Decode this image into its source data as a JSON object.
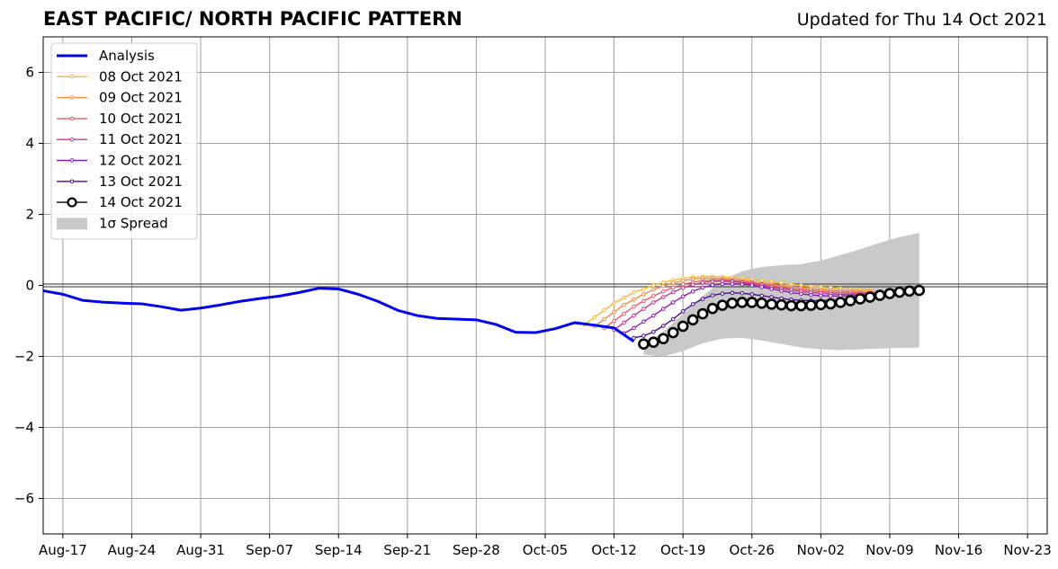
{
  "header": {
    "title": "EAST PACIFIC/ NORTH PACIFIC PATTERN",
    "updated": "Updated for Thu 14 Oct 2021"
  },
  "chart_data": {
    "type": "line",
    "title": "EAST PACIFIC/ NORTH PACIFIC PATTERN",
    "xlabel": "",
    "ylabel": "",
    "x_axis": "date",
    "xlim": [
      "2021-08-15",
      "2021-11-25"
    ],
    "ylim": [
      -7,
      7
    ],
    "x_ticks": [
      "2021-08-17",
      "2021-08-24",
      "2021-08-31",
      "2021-09-07",
      "2021-09-14",
      "2021-09-21",
      "2021-09-28",
      "2021-10-05",
      "2021-10-12",
      "2021-10-19",
      "2021-10-26",
      "2021-11-02",
      "2021-11-09",
      "2021-11-16",
      "2021-11-23"
    ],
    "x_tick_labels": [
      "Aug-17",
      "Aug-24",
      "Aug-31",
      "Sep-07",
      "Sep-14",
      "Sep-21",
      "Sep-28",
      "Oct-05",
      "Oct-12",
      "Oct-19",
      "Oct-26",
      "Nov-02",
      "Nov-09",
      "Nov-16",
      "Nov-23"
    ],
    "y_ticks": [
      6,
      4,
      2,
      0,
      -2,
      -4,
      -6
    ],
    "y_tick_labels": [
      "6",
      "4",
      "2",
      "0",
      "−2",
      "−4",
      "−6"
    ],
    "grid": true,
    "zero_line": true,
    "legend": "upper-left",
    "analysis": {
      "name": "Analysis",
      "color": "#0000ee",
      "points": [
        [
          "2021-08-15",
          -0.15
        ],
        [
          "2021-08-17",
          -0.25
        ],
        [
          "2021-08-19",
          -0.42
        ],
        [
          "2021-08-21",
          -0.47
        ],
        [
          "2021-08-23",
          -0.5
        ],
        [
          "2021-08-25",
          -0.52
        ],
        [
          "2021-08-27",
          -0.6
        ],
        [
          "2021-08-29",
          -0.7
        ],
        [
          "2021-08-31",
          -0.64
        ],
        [
          "2021-09-02",
          -0.55
        ],
        [
          "2021-09-04",
          -0.45
        ],
        [
          "2021-09-06",
          -0.37
        ],
        [
          "2021-09-08",
          -0.3
        ],
        [
          "2021-09-10",
          -0.2
        ],
        [
          "2021-09-12",
          -0.08
        ],
        [
          "2021-09-14",
          -0.1
        ],
        [
          "2021-09-16",
          -0.25
        ],
        [
          "2021-09-18",
          -0.45
        ],
        [
          "2021-09-20",
          -0.7
        ],
        [
          "2021-09-22",
          -0.85
        ],
        [
          "2021-09-24",
          -0.93
        ],
        [
          "2021-09-26",
          -0.95
        ],
        [
          "2021-09-28",
          -0.97
        ],
        [
          "2021-09-30",
          -1.1
        ],
        [
          "2021-10-02",
          -1.32
        ],
        [
          "2021-10-04",
          -1.33
        ],
        [
          "2021-10-06",
          -1.22
        ],
        [
          "2021-10-08",
          -1.05
        ],
        [
          "2021-10-10",
          -1.12
        ],
        [
          "2021-10-12",
          -1.2
        ],
        [
          "2021-10-14",
          -1.58
        ]
      ]
    },
    "forecasts": [
      {
        "name": "08 Oct 2021",
        "color": "#f6b932",
        "points": [
          [
            "2021-10-09",
            -1.1
          ],
          [
            "2021-10-10",
            -0.9
          ],
          [
            "2021-10-11",
            -0.7
          ],
          [
            "2021-10-12",
            -0.5
          ],
          [
            "2021-10-13",
            -0.35
          ],
          [
            "2021-10-14",
            -0.2
          ],
          [
            "2021-10-15",
            -0.1
          ],
          [
            "2021-10-16",
            0.0
          ],
          [
            "2021-10-17",
            0.08
          ],
          [
            "2021-10-18",
            0.15
          ],
          [
            "2021-10-19",
            0.2
          ],
          [
            "2021-10-20",
            0.23
          ],
          [
            "2021-10-21",
            0.25
          ],
          [
            "2021-10-22",
            0.25
          ],
          [
            "2021-10-23",
            0.24
          ],
          [
            "2021-10-24",
            0.22
          ],
          [
            "2021-10-25",
            0.2
          ],
          [
            "2021-10-26",
            0.17
          ],
          [
            "2021-10-27",
            0.13
          ],
          [
            "2021-10-28",
            0.1
          ],
          [
            "2021-10-29",
            0.07
          ],
          [
            "2021-10-30",
            0.03
          ],
          [
            "2021-10-31",
            0.0
          ],
          [
            "2021-11-01",
            -0.03
          ],
          [
            "2021-11-02",
            -0.05
          ],
          [
            "2021-11-03",
            -0.07
          ],
          [
            "2021-11-04",
            -0.09
          ],
          [
            "2021-11-05",
            -0.11
          ],
          [
            "2021-11-06",
            -0.12
          ],
          [
            "2021-11-07",
            -0.13
          ]
        ]
      },
      {
        "name": "09 Oct 2021",
        "color": "#f48a47",
        "points": [
          [
            "2021-10-10",
            -1.15
          ],
          [
            "2021-10-11",
            -0.95
          ],
          [
            "2021-10-12",
            -0.75
          ],
          [
            "2021-10-13",
            -0.55
          ],
          [
            "2021-10-14",
            -0.4
          ],
          [
            "2021-10-15",
            -0.25
          ],
          [
            "2021-10-16",
            -0.12
          ],
          [
            "2021-10-17",
            -0.02
          ],
          [
            "2021-10-18",
            0.07
          ],
          [
            "2021-10-19",
            0.13
          ],
          [
            "2021-10-20",
            0.18
          ],
          [
            "2021-10-21",
            0.2
          ],
          [
            "2021-10-22",
            0.2
          ],
          [
            "2021-10-23",
            0.19
          ],
          [
            "2021-10-24",
            0.17
          ],
          [
            "2021-10-25",
            0.14
          ],
          [
            "2021-10-26",
            0.1
          ],
          [
            "2021-10-27",
            0.06
          ],
          [
            "2021-10-28",
            0.03
          ],
          [
            "2021-10-29",
            -0.01
          ],
          [
            "2021-10-30",
            -0.04
          ],
          [
            "2021-10-31",
            -0.07
          ],
          [
            "2021-11-01",
            -0.1
          ],
          [
            "2021-11-02",
            -0.12
          ],
          [
            "2021-11-03",
            -0.14
          ],
          [
            "2021-11-04",
            -0.15
          ],
          [
            "2021-11-05",
            -0.16
          ],
          [
            "2021-11-06",
            -0.17
          ],
          [
            "2021-11-07",
            -0.17
          ],
          [
            "2021-11-08",
            -0.17
          ]
        ]
      },
      {
        "name": "10 Oct 2021",
        "color": "#e05c6b",
        "points": [
          [
            "2021-10-11",
            -1.2
          ],
          [
            "2021-10-12",
            -1.0
          ],
          [
            "2021-10-13",
            -0.8
          ],
          [
            "2021-10-14",
            -0.6
          ],
          [
            "2021-10-15",
            -0.44
          ],
          [
            "2021-10-16",
            -0.3
          ],
          [
            "2021-10-17",
            -0.17
          ],
          [
            "2021-10-18",
            -0.06
          ],
          [
            "2021-10-19",
            0.03
          ],
          [
            "2021-10-20",
            0.09
          ],
          [
            "2021-10-21",
            0.13
          ],
          [
            "2021-10-22",
            0.15
          ],
          [
            "2021-10-23",
            0.15
          ],
          [
            "2021-10-24",
            0.13
          ],
          [
            "2021-10-25",
            0.1
          ],
          [
            "2021-10-26",
            0.07
          ],
          [
            "2021-10-27",
            0.03
          ],
          [
            "2021-10-28",
            -0.01
          ],
          [
            "2021-10-29",
            -0.05
          ],
          [
            "2021-10-30",
            -0.09
          ],
          [
            "2021-10-31",
            -0.12
          ],
          [
            "2021-11-01",
            -0.15
          ],
          [
            "2021-11-02",
            -0.17
          ],
          [
            "2021-11-03",
            -0.19
          ],
          [
            "2021-11-04",
            -0.2
          ],
          [
            "2021-11-05",
            -0.2
          ],
          [
            "2021-11-06",
            -0.21
          ],
          [
            "2021-11-07",
            -0.21
          ],
          [
            "2021-11-08",
            -0.2
          ]
        ]
      },
      {
        "name": "11 Oct 2021",
        "color": "#c0388c",
        "points": [
          [
            "2021-10-12",
            -1.25
          ],
          [
            "2021-10-13",
            -1.05
          ],
          [
            "2021-10-14",
            -0.85
          ],
          [
            "2021-10-15",
            -0.66
          ],
          [
            "2021-10-16",
            -0.48
          ],
          [
            "2021-10-17",
            -0.33
          ],
          [
            "2021-10-18",
            -0.19
          ],
          [
            "2021-10-19",
            -0.07
          ],
          [
            "2021-10-20",
            0.02
          ],
          [
            "2021-10-21",
            0.08
          ],
          [
            "2021-10-22",
            0.11
          ],
          [
            "2021-10-23",
            0.12
          ],
          [
            "2021-10-24",
            0.11
          ],
          [
            "2021-10-25",
            0.08
          ],
          [
            "2021-10-26",
            0.04
          ],
          [
            "2021-10-27",
            0.0
          ],
          [
            "2021-10-28",
            -0.05
          ],
          [
            "2021-10-29",
            -0.09
          ],
          [
            "2021-10-30",
            -0.13
          ],
          [
            "2021-10-31",
            -0.17
          ],
          [
            "2021-11-01",
            -0.2
          ],
          [
            "2021-11-02",
            -0.22
          ],
          [
            "2021-11-03",
            -0.24
          ],
          [
            "2021-11-04",
            -0.25
          ],
          [
            "2021-11-05",
            -0.25
          ],
          [
            "2021-11-06",
            -0.24
          ],
          [
            "2021-11-07",
            -0.23
          ],
          [
            "2021-11-08",
            -0.22
          ]
        ]
      },
      {
        "name": "12 Oct 2021",
        "color": "#8a1aad",
        "points": [
          [
            "2021-10-13",
            -1.35
          ],
          [
            "2021-10-14",
            -1.2
          ],
          [
            "2021-10-15",
            -1.02
          ],
          [
            "2021-10-16",
            -0.85
          ],
          [
            "2021-10-17",
            -0.66
          ],
          [
            "2021-10-18",
            -0.48
          ],
          [
            "2021-10-19",
            -0.31
          ],
          [
            "2021-10-20",
            -0.17
          ],
          [
            "2021-10-21",
            -0.06
          ],
          [
            "2021-10-22",
            0.01
          ],
          [
            "2021-10-23",
            0.04
          ],
          [
            "2021-10-24",
            0.05
          ],
          [
            "2021-10-25",
            0.03
          ],
          [
            "2021-10-26",
            0.0
          ],
          [
            "2021-10-27",
            -0.05
          ],
          [
            "2021-10-28",
            -0.1
          ],
          [
            "2021-10-29",
            -0.15
          ],
          [
            "2021-10-30",
            -0.2
          ],
          [
            "2021-10-31",
            -0.24
          ],
          [
            "2021-11-01",
            -0.27
          ],
          [
            "2021-11-02",
            -0.29
          ],
          [
            "2021-11-03",
            -0.3
          ],
          [
            "2021-11-04",
            -0.3
          ],
          [
            "2021-11-05",
            -0.29
          ],
          [
            "2021-11-06",
            -0.28
          ],
          [
            "2021-11-07",
            -0.26
          ],
          [
            "2021-11-08",
            -0.24
          ]
        ]
      },
      {
        "name": "13 Oct 2021",
        "color": "#4a0c8f",
        "points": [
          [
            "2021-10-14",
            -1.48
          ],
          [
            "2021-10-15",
            -1.42
          ],
          [
            "2021-10-16",
            -1.31
          ],
          [
            "2021-10-17",
            -1.14
          ],
          [
            "2021-10-18",
            -0.95
          ],
          [
            "2021-10-19",
            -0.73
          ],
          [
            "2021-10-20",
            -0.53
          ],
          [
            "2021-10-21",
            -0.38
          ],
          [
            "2021-10-22",
            -0.28
          ],
          [
            "2021-10-23",
            -0.23
          ],
          [
            "2021-10-24",
            -0.21
          ],
          [
            "2021-10-25",
            -0.22
          ],
          [
            "2021-10-26",
            -0.25
          ],
          [
            "2021-10-27",
            -0.29
          ],
          [
            "2021-10-28",
            -0.33
          ],
          [
            "2021-10-29",
            -0.37
          ],
          [
            "2021-10-30",
            -0.4
          ],
          [
            "2021-10-31",
            -0.42
          ],
          [
            "2021-11-01",
            -0.43
          ],
          [
            "2021-11-02",
            -0.43
          ],
          [
            "2021-11-03",
            -0.42
          ],
          [
            "2021-11-04",
            -0.41
          ],
          [
            "2021-11-05",
            -0.39
          ],
          [
            "2021-11-06",
            -0.37
          ],
          [
            "2021-11-07",
            -0.35
          ],
          [
            "2021-11-08",
            -0.32
          ]
        ]
      },
      {
        "name": "14 Oct 2021",
        "color": "#000000",
        "points": [
          [
            "2021-10-15",
            -1.65
          ],
          [
            "2021-10-16",
            -1.6
          ],
          [
            "2021-10-17",
            -1.5
          ],
          [
            "2021-10-18",
            -1.33
          ],
          [
            "2021-10-19",
            -1.15
          ],
          [
            "2021-10-20",
            -0.97
          ],
          [
            "2021-10-21",
            -0.8
          ],
          [
            "2021-10-22",
            -0.65
          ],
          [
            "2021-10-23",
            -0.56
          ],
          [
            "2021-10-24",
            -0.5
          ],
          [
            "2021-10-25",
            -0.48
          ],
          [
            "2021-10-26",
            -0.48
          ],
          [
            "2021-10-27",
            -0.5
          ],
          [
            "2021-10-28",
            -0.53
          ],
          [
            "2021-10-29",
            -0.55
          ],
          [
            "2021-10-30",
            -0.57
          ],
          [
            "2021-10-31",
            -0.57
          ],
          [
            "2021-11-01",
            -0.56
          ],
          [
            "2021-11-02",
            -0.54
          ],
          [
            "2021-11-03",
            -0.52
          ],
          [
            "2021-11-04",
            -0.48
          ],
          [
            "2021-11-05",
            -0.43
          ],
          [
            "2021-11-06",
            -0.38
          ],
          [
            "2021-11-07",
            -0.33
          ],
          [
            "2021-11-08",
            -0.28
          ],
          [
            "2021-11-09",
            -0.23
          ],
          [
            "2021-11-10",
            -0.19
          ],
          [
            "2021-11-11",
            -0.16
          ],
          [
            "2021-11-12",
            -0.14
          ]
        ]
      }
    ],
    "spread": {
      "name": "1σ Spread",
      "color": "#c9c9c9",
      "upper": [
        [
          "2021-10-15",
          -1.7
        ],
        [
          "2021-10-17",
          -1.3
        ],
        [
          "2021-10-19",
          -0.8
        ],
        [
          "2021-10-21",
          -0.3
        ],
        [
          "2021-10-23",
          0.15
        ],
        [
          "2021-10-25",
          0.4
        ],
        [
          "2021-10-27",
          0.52
        ],
        [
          "2021-10-29",
          0.57
        ],
        [
          "2021-10-31",
          0.6
        ],
        [
          "2021-11-02",
          0.7
        ],
        [
          "2021-11-04",
          0.85
        ],
        [
          "2021-11-06",
          1.02
        ],
        [
          "2021-11-08",
          1.2
        ],
        [
          "2021-11-10",
          1.36
        ],
        [
          "2021-11-12",
          1.48
        ]
      ],
      "lower": [
        [
          "2021-10-15",
          -1.95
        ],
        [
          "2021-10-17",
          -2.0
        ],
        [
          "2021-10-19",
          -1.85
        ],
        [
          "2021-10-21",
          -1.63
        ],
        [
          "2021-10-23",
          -1.5
        ],
        [
          "2021-10-25",
          -1.48
        ],
        [
          "2021-10-27",
          -1.55
        ],
        [
          "2021-10-29",
          -1.65
        ],
        [
          "2021-10-31",
          -1.75
        ],
        [
          "2021-11-02",
          -1.8
        ],
        [
          "2021-11-04",
          -1.82
        ],
        [
          "2021-11-06",
          -1.8
        ],
        [
          "2021-11-08",
          -1.78
        ],
        [
          "2021-11-10",
          -1.76
        ],
        [
          "2021-11-12",
          -1.75
        ]
      ]
    }
  }
}
